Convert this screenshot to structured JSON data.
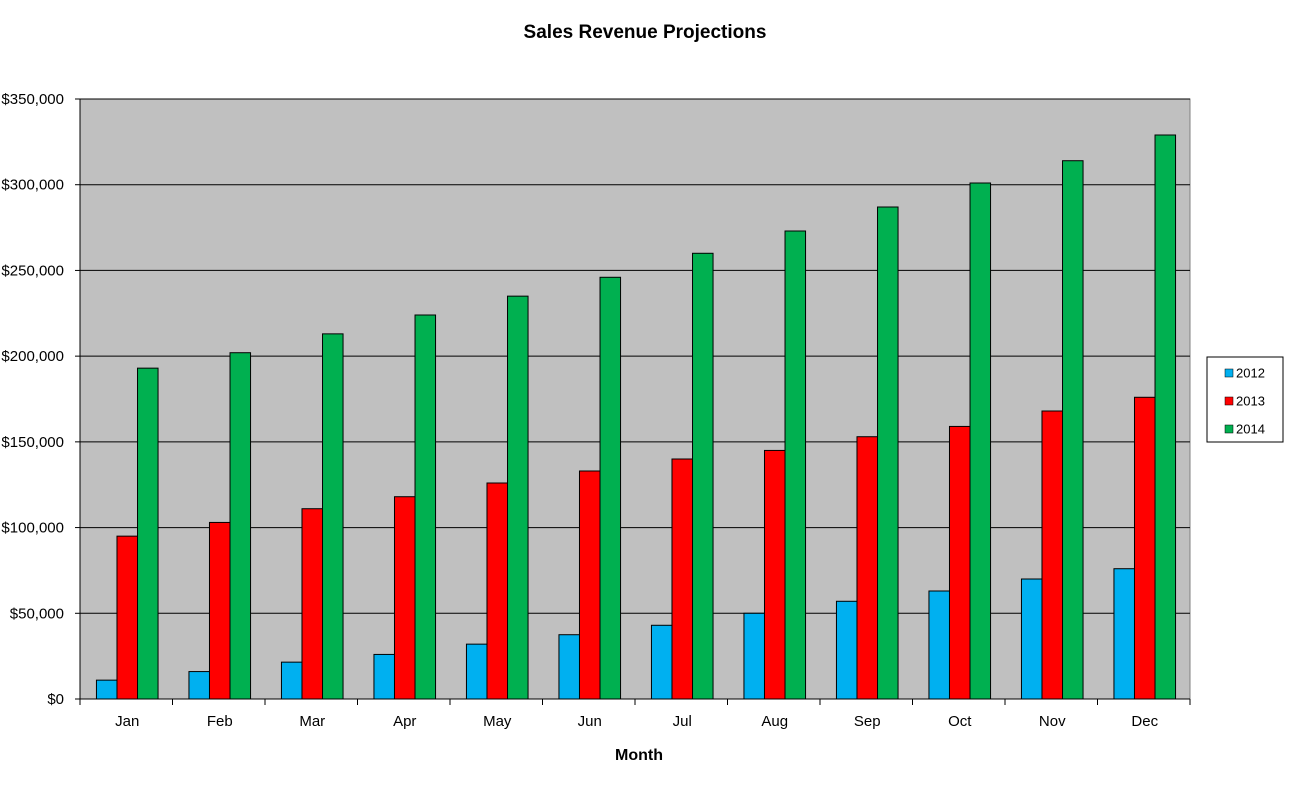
{
  "chart_data": {
    "type": "bar",
    "title": "Sales Revenue Projections",
    "x_label": "Month",
    "categories": [
      "Jan",
      "Feb",
      "Mar",
      "Apr",
      "May",
      "Jun",
      "Jul",
      "Aug",
      "Sep",
      "Oct",
      "Nov",
      "Dec"
    ],
    "series": [
      {
        "name": "2012",
        "color": "#00b0f0",
        "values": [
          11000,
          16000,
          21500,
          26000,
          32000,
          37500,
          43000,
          50000,
          57000,
          63000,
          70000,
          76000
        ]
      },
      {
        "name": "2013",
        "color": "#ff0000",
        "values": [
          95000,
          103000,
          111000,
          118000,
          126000,
          133000,
          140000,
          145000,
          153000,
          159000,
          168000,
          176000
        ]
      },
      {
        "name": "2014",
        "color": "#00b050",
        "values": [
          193000,
          202000,
          213000,
          224000,
          235000,
          246000,
          260000,
          273000,
          287000,
          301000,
          314000,
          329000
        ]
      }
    ],
    "ylim": [
      0,
      350000
    ],
    "yticks": [
      {
        "value": 0,
        "label": "$0"
      },
      {
        "value": 50000,
        "label": "$50,000"
      },
      {
        "value": 100000,
        "label": "$100,000"
      },
      {
        "value": 150000,
        "label": "$150,000"
      },
      {
        "value": 200000,
        "label": "$200,000"
      },
      {
        "value": 250000,
        "label": "$250,000"
      },
      {
        "value": 300000,
        "label": "$300,000"
      },
      {
        "value": 350000,
        "label": "$350,000"
      }
    ],
    "grid": true,
    "legend": "right"
  }
}
